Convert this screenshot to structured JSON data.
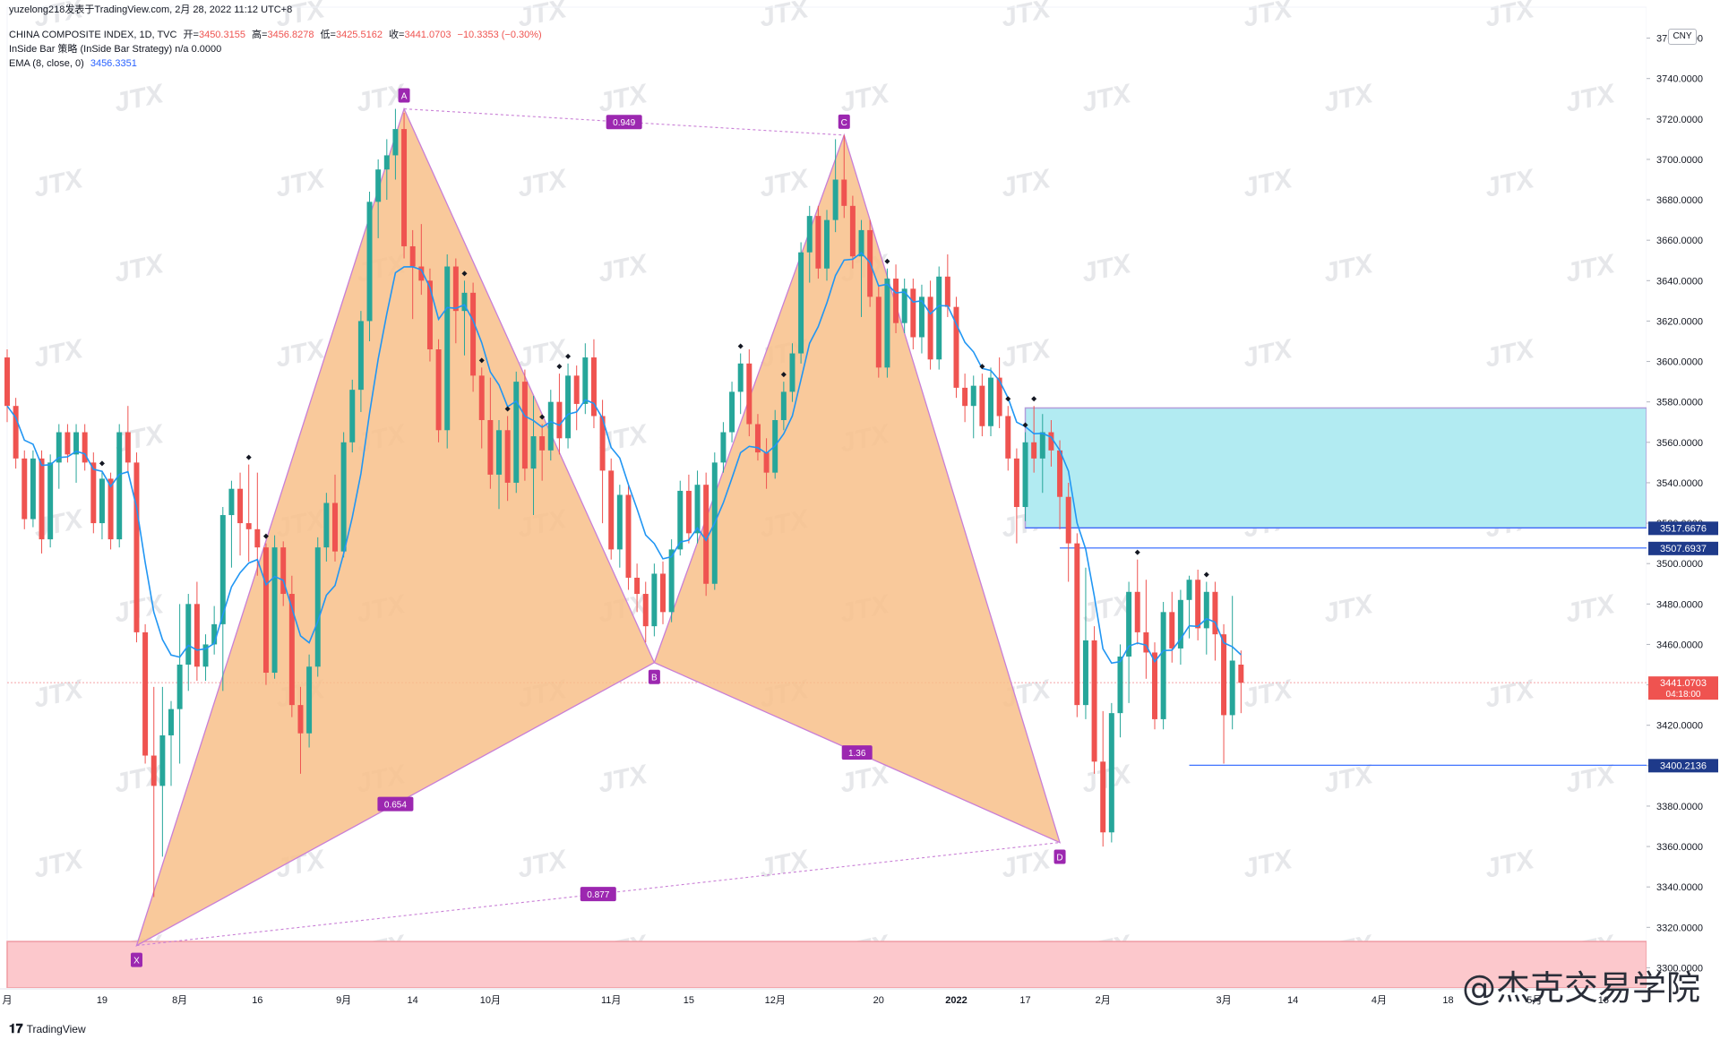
{
  "header": {
    "published": "yuzelong218发表于TradingView.com,  2月 28, 2022 11:12 UTC+8",
    "symbol_line": "CHINA COMPOSITE INDEX, 1D, TVC",
    "open_label": "开=",
    "open_value": "3450.3155",
    "high_label": "高=",
    "high_value": "3456.8278",
    "low_label": "低=",
    "low_value": "3425.5162",
    "close_label": "收=",
    "close_value": "3441.0703",
    "change_value": "−10.3353 (−0.30%)",
    "strategy_line": "InSide Bar 策略 (InSide Bar Strategy)  n/a  0.0000",
    "ema_label": "EMA (8, close, 0)",
    "ema_value": "3456.3351"
  },
  "currency": "CNY",
  "footer": {
    "logo_text": "TradingView",
    "watermark": "@杰克交易学院"
  },
  "watermark_text": "JTX",
  "colors": {
    "up": "#26a69a",
    "down": "#ef5350",
    "ema": "#2196f3",
    "pattern_fill": "#f8c08a",
    "pattern_line": "#c97fd6",
    "label_bg": "#9c27b0",
    "zone_cyan": "#b2ebf2",
    "zone_red": "#fcc8cc",
    "level_line": "#2962ff",
    "last_price_bg": "#ef5350",
    "price_label_bg": "#1e3a8a"
  },
  "chart_data": {
    "type": "candlestick",
    "title": "CHINA COMPOSITE INDEX, 1D, TVC",
    "y_range": [
      3290,
      3770
    ],
    "y_ticks": [
      "3760.0000",
      "3740.0000",
      "3720.0000",
      "3700.0000",
      "3680.0000",
      "3660.0000",
      "3640.0000",
      "3620.0000",
      "3600.0000",
      "3580.0000",
      "3560.0000",
      "3540.0000",
      "3520.0000",
      "3500.0000",
      "3480.0000",
      "3460.0000",
      "3440.0000",
      "3420.0000",
      "3400.0000",
      "3380.0000",
      "3360.0000",
      "3340.0000",
      "3320.0000",
      "3300.0000"
    ],
    "x_range": [
      0,
      190
    ],
    "x_ticks": [
      {
        "i": 0,
        "label": "月"
      },
      {
        "i": 11,
        "label": "19"
      },
      {
        "i": 20,
        "label": "8月"
      },
      {
        "i": 29,
        "label": "16"
      },
      {
        "i": 39,
        "label": "9月"
      },
      {
        "i": 47,
        "label": "14"
      },
      {
        "i": 56,
        "label": "10月"
      },
      {
        "i": 70,
        "label": "11月"
      },
      {
        "i": 79,
        "label": "15"
      },
      {
        "i": 89,
        "label": "12月"
      },
      {
        "i": 101,
        "label": "20"
      },
      {
        "i": 110,
        "label": "2022"
      },
      {
        "i": 118,
        "label": "17"
      },
      {
        "i": 127,
        "label": "2月"
      },
      {
        "i": 141,
        "label": "3月"
      },
      {
        "i": 149,
        "label": "14"
      },
      {
        "i": 159,
        "label": "4月"
      },
      {
        "i": 167,
        "label": "18"
      },
      {
        "i": 177,
        "label": "5月"
      },
      {
        "i": 185,
        "label": "16"
      }
    ],
    "last_index": 140,
    "harmonic_pattern": {
      "points": [
        {
          "label": "X",
          "i": 15,
          "price": 3311
        },
        {
          "label": "A",
          "i": 46,
          "price": 3725
        },
        {
          "label": "B",
          "i": 75,
          "price": 3451
        },
        {
          "label": "C",
          "i": 97,
          "price": 3712
        },
        {
          "label": "D",
          "i": 122,
          "price": 3362
        }
      ],
      "ratios": [
        {
          "label": "0.949",
          "between": "A-C"
        },
        {
          "label": "0.654",
          "between": "X-B"
        },
        {
          "label": "1.36",
          "between": "B-D"
        },
        {
          "label": "0.877",
          "between": "X-D"
        }
      ]
    },
    "zones": [
      {
        "name": "supply",
        "from_i": 118,
        "to_i": 190,
        "low": 3517.6676,
        "high": 3577
      },
      {
        "name": "demand",
        "from_i": 0,
        "to_i": 190,
        "low": 3290,
        "high": 3313
      }
    ],
    "levels": [
      {
        "price": 3517.6676,
        "label": "3517.6676"
      },
      {
        "price": 3507.6937,
        "label": "3507.6937",
        "from_i": 122
      },
      {
        "price": 3400.2136,
        "label": "3400.2136",
        "from_i": 137
      }
    ],
    "last_price": {
      "price": 3441.0703,
      "label": "3441.0703",
      "countdown": "04:18:00"
    },
    "ema_last": 3456.3351,
    "marker_indices": [
      11,
      28,
      30,
      53,
      55,
      58,
      62,
      64,
      65,
      85,
      90,
      102,
      113,
      116,
      118,
      119,
      131,
      139
    ],
    "candles": [
      [
        3602,
        3606,
        3570,
        3578
      ],
      [
        3578,
        3582,
        3547,
        3552
      ],
      [
        3552,
        3556,
        3517,
        3522
      ],
      [
        3522,
        3556,
        3518,
        3552
      ],
      [
        3552,
        3556,
        3505,
        3512
      ],
      [
        3512,
        3554,
        3508,
        3550
      ],
      [
        3550,
        3569,
        3537,
        3565
      ],
      [
        3565,
        3569,
        3550,
        3554
      ],
      [
        3554,
        3569,
        3540,
        3565
      ],
      [
        3565,
        3569,
        3546,
        3550
      ],
      [
        3550,
        3555,
        3515,
        3520
      ],
      [
        3520,
        3546,
        3512,
        3542
      ],
      [
        3542,
        3545,
        3507,
        3512
      ],
      [
        3512,
        3569,
        3508,
        3565
      ],
      [
        3565,
        3578,
        3545,
        3550
      ],
      [
        3550,
        3555,
        3461,
        3466
      ],
      [
        3466,
        3470,
        3401,
        3405
      ],
      [
        3405,
        3439,
        3335,
        3390
      ],
      [
        3390,
        3439,
        3355,
        3415
      ],
      [
        3415,
        3432,
        3390,
        3428
      ],
      [
        3428,
        3480,
        3401,
        3450
      ],
      [
        3450,
        3485,
        3437,
        3480
      ],
      [
        3480,
        3491,
        3442,
        3449
      ],
      [
        3449,
        3465,
        3442,
        3460
      ],
      [
        3460,
        3479,
        3455,
        3470
      ],
      [
        3470,
        3528,
        3437,
        3524
      ],
      [
        3524,
        3541,
        3498,
        3537
      ],
      [
        3537,
        3545,
        3504,
        3520
      ],
      [
        3520,
        3549,
        3501,
        3517
      ],
      [
        3517,
        3545,
        3494,
        3508
      ],
      [
        3508,
        3510,
        3440,
        3446
      ],
      [
        3446,
        3514,
        3443,
        3508
      ],
      [
        3508,
        3511,
        3479,
        3485
      ],
      [
        3485,
        3494,
        3424,
        3430
      ],
      [
        3430,
        3439,
        3396,
        3416
      ],
      [
        3416,
        3455,
        3409,
        3449
      ],
      [
        3449,
        3513,
        3444,
        3508
      ],
      [
        3508,
        3535,
        3501,
        3530
      ],
      [
        3530,
        3544,
        3501,
        3506
      ],
      [
        3506,
        3565,
        3503,
        3560
      ],
      [
        3560,
        3591,
        3555,
        3586
      ],
      [
        3586,
        3625,
        3575,
        3620
      ],
      [
        3620,
        3684,
        3610,
        3679
      ],
      [
        3679,
        3700,
        3661,
        3695
      ],
      [
        3695,
        3710,
        3680,
        3702
      ],
      [
        3702,
        3725,
        3690,
        3715
      ],
      [
        3715,
        3723,
        3651,
        3657
      ],
      [
        3657,
        3665,
        3621,
        3647
      ],
      [
        3647,
        3668,
        3633,
        3640
      ],
      [
        3640,
        3646,
        3600,
        3606
      ],
      [
        3606,
        3611,
        3560,
        3566
      ],
      [
        3566,
        3653,
        3557,
        3647
      ],
      [
        3647,
        3651,
        3609,
        3625
      ],
      [
        3625,
        3640,
        3603,
        3634
      ],
      [
        3634,
        3639,
        3585,
        3593
      ],
      [
        3593,
        3597,
        3557,
        3571
      ],
      [
        3571,
        3592,
        3537,
        3544
      ],
      [
        3544,
        3571,
        3527,
        3566
      ],
      [
        3566,
        3573,
        3531,
        3540
      ],
      [
        3540,
        3595,
        3535,
        3590
      ],
      [
        3590,
        3596,
        3541,
        3547
      ],
      [
        3547,
        3583,
        3524,
        3563
      ],
      [
        3563,
        3569,
        3541,
        3556
      ],
      [
        3556,
        3586,
        3551,
        3580
      ],
      [
        3580,
        3594,
        3554,
        3562
      ],
      [
        3562,
        3599,
        3557,
        3593
      ],
      [
        3593,
        3598,
        3566,
        3579
      ],
      [
        3579,
        3609,
        3574,
        3602
      ],
      [
        3602,
        3611,
        3567,
        3573
      ],
      [
        3573,
        3581,
        3520,
        3546
      ],
      [
        3546,
        3552,
        3502,
        3507
      ],
      [
        3507,
        3539,
        3498,
        3534
      ],
      [
        3534,
        3539,
        3487,
        3493
      ],
      [
        3493,
        3500,
        3476,
        3485
      ],
      [
        3485,
        3491,
        3461,
        3469
      ],
      [
        3469,
        3500,
        3464,
        3495
      ],
      [
        3495,
        3501,
        3470,
        3476
      ],
      [
        3476,
        3512,
        3471,
        3507
      ],
      [
        3507,
        3541,
        3504,
        3536
      ],
      [
        3536,
        3544,
        3510,
        3515
      ],
      [
        3515,
        3546,
        3510,
        3539
      ],
      [
        3539,
        3545,
        3484,
        3490
      ],
      [
        3490,
        3555,
        3487,
        3550
      ],
      [
        3550,
        3570,
        3545,
        3565
      ],
      [
        3565,
        3590,
        3560,
        3585
      ],
      [
        3585,
        3604,
        3574,
        3599
      ],
      [
        3599,
        3606,
        3563,
        3569
      ],
      [
        3569,
        3574,
        3551,
        3555
      ],
      [
        3555,
        3562,
        3537,
        3545
      ],
      [
        3545,
        3576,
        3542,
        3571
      ],
      [
        3571,
        3590,
        3566,
        3585
      ],
      [
        3585,
        3609,
        3580,
        3604
      ],
      [
        3604,
        3659,
        3599,
        3654
      ],
      [
        3654,
        3677,
        3639,
        3672
      ],
      [
        3672,
        3677,
        3641,
        3646
      ],
      [
        3646,
        3675,
        3640,
        3670
      ],
      [
        3670,
        3710,
        3664,
        3690
      ],
      [
        3690,
        3712,
        3671,
        3677
      ],
      [
        3677,
        3682,
        3646,
        3652
      ],
      [
        3652,
        3670,
        3622,
        3665
      ],
      [
        3665,
        3670,
        3627,
        3632
      ],
      [
        3632,
        3637,
        3592,
        3597
      ],
      [
        3597,
        3646,
        3592,
        3641
      ],
      [
        3641,
        3648,
        3614,
        3619
      ],
      [
        3619,
        3641,
        3614,
        3636
      ],
      [
        3636,
        3641,
        3606,
        3612
      ],
      [
        3612,
        3638,
        3604,
        3632
      ],
      [
        3632,
        3640,
        3596,
        3601
      ],
      [
        3601,
        3647,
        3596,
        3642
      ],
      [
        3642,
        3653,
        3622,
        3627
      ],
      [
        3627,
        3632,
        3582,
        3587
      ],
      [
        3587,
        3594,
        3570,
        3578
      ],
      [
        3578,
        3593,
        3562,
        3588
      ],
      [
        3588,
        3594,
        3563,
        3568
      ],
      [
        3568,
        3597,
        3563,
        3592
      ],
      [
        3592,
        3602,
        3567,
        3573
      ],
      [
        3573,
        3578,
        3546,
        3552
      ],
      [
        3552,
        3557,
        3510,
        3528
      ],
      [
        3528,
        3565,
        3521,
        3560
      ],
      [
        3560,
        3578,
        3545,
        3552
      ],
      [
        3552,
        3574,
        3535,
        3565
      ],
      [
        3565,
        3571,
        3548,
        3556
      ],
      [
        3556,
        3561,
        3517,
        3533
      ],
      [
        3533,
        3540,
        3491,
        3510
      ],
      [
        3510,
        3515,
        3424,
        3430
      ],
      [
        3430,
        3498,
        3423,
        3462
      ],
      [
        3462,
        3469,
        3396,
        3402
      ],
      [
        3402,
        3427,
        3360,
        3367
      ],
      [
        3367,
        3431,
        3362,
        3426
      ],
      [
        3426,
        3460,
        3414,
        3454
      ],
      [
        3454,
        3491,
        3431,
        3486
      ],
      [
        3486,
        3502,
        3460,
        3466
      ],
      [
        3466,
        3492,
        3443,
        3456
      ],
      [
        3456,
        3461,
        3418,
        3423
      ],
      [
        3423,
        3481,
        3418,
        3476
      ],
      [
        3476,
        3486,
        3451,
        3458
      ],
      [
        3458,
        3487,
        3450,
        3482
      ],
      [
        3482,
        3494,
        3463,
        3492
      ],
      [
        3492,
        3497,
        3462,
        3468
      ],
      [
        3468,
        3491,
        3455,
        3486
      ],
      [
        3486,
        3491,
        3452,
        3465
      ],
      [
        3465,
        3470,
        3401,
        3425
      ],
      [
        3425,
        3484,
        3418,
        3452
      ],
      [
        3450,
        3457,
        3426,
        3441
      ]
    ]
  }
}
